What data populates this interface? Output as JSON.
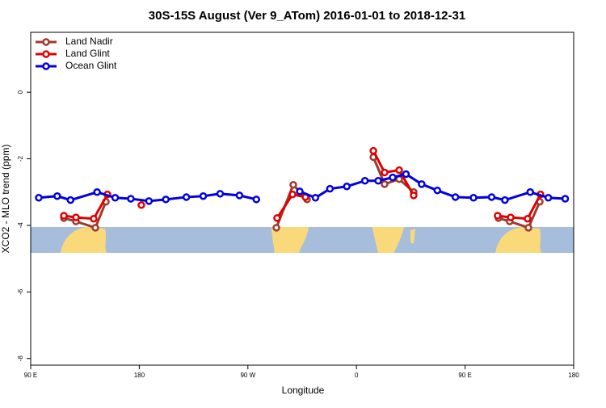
{
  "chart_data": {
    "type": "line",
    "title": "30S-15S August (Ver 9_ATom)   2016-01-01 to 2018-12-31",
    "x_label": "Longitude",
    "y_label": "XCO2 - MLO trend (ppm)",
    "xlim": [
      90,
      540
    ],
    "xticks": [
      {
        "value": 90,
        "label": "90 E"
      },
      180,
      {
        "value": 270,
        "label": "90 W"
      },
      {
        "value": 360,
        "label": "0"
      },
      {
        "value": 450,
        "label": "90 E"
      },
      {
        "value": 540,
        "label": "180"
      }
    ],
    "ylim": [
      -8.2,
      1.8
    ],
    "yticks": [
      0,
      -2,
      -4,
      -6,
      -8
    ],
    "legend": "top-left",
    "series": [
      {
        "name": "Land Nadir",
        "color": "#a0392d",
        "x": [
          117.5,
          127.5,
          143.6,
          152.3,
          220,
          293.6,
          307.6,
          319,
          345,
          374,
          383.3,
          395.4,
          407.4,
          440,
          477.7,
          487,
          502.5,
          511.9
        ],
        "values": [
          -3.78,
          -3.88,
          -4.07,
          -3.29,
          null,
          -4.07,
          -2.78,
          -3.22,
          null,
          -1.95,
          -2.76,
          -2.61,
          -3.0,
          null,
          -3.78,
          -3.88,
          -4.07,
          -3.29
        ]
      },
      {
        "name": "Land Glint",
        "color": "#e00000",
        "x": [
          117.5,
          127.5,
          142.2,
          153.6,
          165,
          181.7,
          240,
          294.2,
          307,
          317.7,
          345,
          374,
          383.3,
          395.4,
          407.4,
          440,
          477,
          487.8,
          501.8,
          512.5
        ],
        "values": [
          -3.71,
          -3.76,
          -3.8,
          -3.07,
          null,
          -3.39,
          null,
          -3.78,
          -3.07,
          -3.15,
          null,
          -1.76,
          -2.41,
          -2.34,
          -3.1,
          null,
          -3.71,
          -3.76,
          -3.8,
          -3.07
        ]
      },
      {
        "name": "Ocean Glint",
        "color": "#0000e0",
        "x": [
          96.7,
          112,
          123,
          145,
          160,
          173,
          188,
          202,
          219,
          233,
          247,
          263,
          277,
          295,
          313,
          326,
          338,
          352,
          367,
          378,
          390,
          401,
          414,
          427,
          442,
          457,
          472,
          483,
          504,
          519,
          533
        ],
        "values": [
          -3.17,
          -3.12,
          -3.24,
          -3.0,
          -3.17,
          -3.2,
          -3.27,
          -3.22,
          -3.15,
          -3.12,
          -3.05,
          -3.1,
          -3.22,
          null,
          -2.98,
          -3.17,
          -2.9,
          -2.83,
          -2.66,
          -2.66,
          -2.56,
          -2.46,
          -2.76,
          -2.95,
          -3.15,
          -3.17,
          -3.15,
          -3.24,
          -3.0,
          -3.17,
          -3.2
        ]
      }
    ]
  }
}
